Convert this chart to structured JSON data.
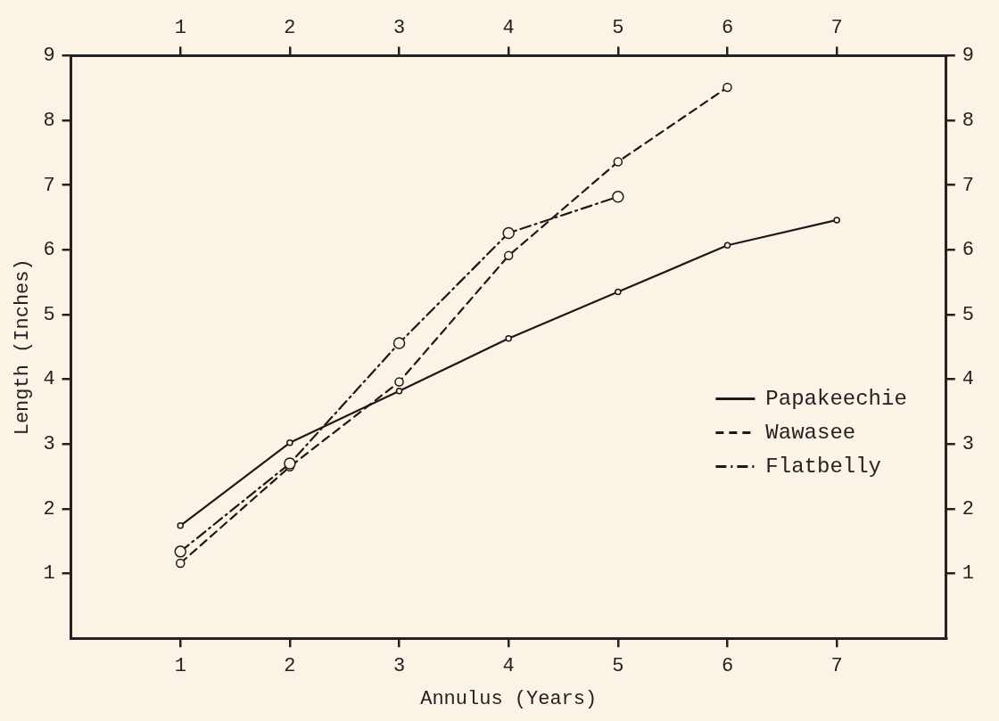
{
  "chart_data": {
    "type": "line",
    "xlabel": "Annulus (Years)",
    "ylabel": "Length (Inches)",
    "x": [
      1,
      2,
      3,
      4,
      5,
      6,
      7
    ],
    "xlim": [
      0,
      8
    ],
    "xticks": [
      1,
      2,
      3,
      4,
      5,
      6,
      7
    ],
    "x2lim": [
      0,
      8
    ],
    "x2ticks": [
      1,
      2,
      3,
      4,
      5,
      6,
      7
    ],
    "ylim": [
      0,
      9
    ],
    "yticks": [
      1,
      2,
      3,
      4,
      5,
      6,
      7,
      8,
      9
    ],
    "y2lim": [
      0,
      9
    ],
    "y2ticks": [
      1,
      2,
      3,
      4,
      5,
      6,
      7,
      8,
      9
    ],
    "series": [
      {
        "name": "Papakeechie",
        "color": "#1a1a1a",
        "line_style": "solid",
        "values": [
          1.74,
          3.02,
          3.82,
          4.63,
          5.35,
          6.07,
          6.46
        ]
      },
      {
        "name": "Wawasee",
        "color": "#1a1a1a",
        "line_style": "dashed",
        "values": [
          1.16,
          2.65,
          3.96,
          5.91,
          7.36,
          8.51,
          null
        ]
      },
      {
        "name": "Flatbelly",
        "color": "#1a1a1a",
        "line_style": "dashdot",
        "values": [
          1.34,
          2.7,
          4.56,
          6.26,
          6.82,
          null,
          null
        ]
      }
    ],
    "marker": "circle",
    "grid": false,
    "legend": "bottom right"
  }
}
